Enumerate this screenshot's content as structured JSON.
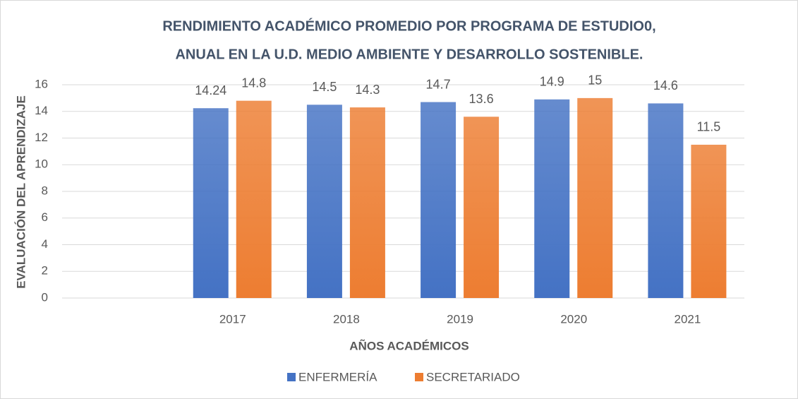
{
  "chart_data": {
    "type": "bar",
    "title": [
      "RENDIMIENTO ACADÉMICO PROMEDIO  POR PROGRAMA DE ESTUDIO0,",
      "ANUAL EN LA U.D. MEDIO AMBIENTE Y DESARROLLO SOSTENIBLE."
    ],
    "xlabel": "AÑOS ACADÉMICOS",
    "ylabel": "EVALUACIÓN DEL APRENDIZAJE",
    "categories": [
      null,
      "2017",
      "2018",
      "2019",
      "2020",
      "2021"
    ],
    "series": [
      {
        "name": "ENFERMERÍA",
        "color": "#4472c4",
        "values": [
          null,
          14.24,
          14.5,
          14.7,
          14.9,
          14.6
        ]
      },
      {
        "name": "SECRETARIADO",
        "color": "#ed7d31",
        "values": [
          null,
          14.8,
          14.3,
          13.6,
          15,
          11.5
        ]
      }
    ],
    "ylim": [
      0,
      16
    ],
    "yticks": [
      0,
      2,
      4,
      6,
      8,
      10,
      12,
      14,
      16
    ],
    "grid": true,
    "legend": "bottom"
  }
}
